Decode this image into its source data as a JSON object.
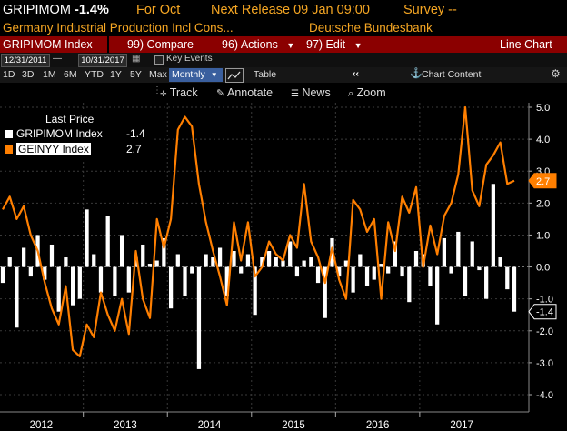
{
  "header": {
    "ticker": "GRIPIMOM",
    "last_value": "-1.4%",
    "period": "For Oct",
    "next_release": "Next Release 09 Jan 09:00",
    "survey": "Survey --"
  },
  "subheader": {
    "description": "Germany Industrial Production Incl Cons...",
    "source": "Deutsche Bundesbank"
  },
  "toolbar": {
    "security": "GRIPIMOM Index",
    "compare": "99) Compare",
    "actions": "96) Actions",
    "edit": "97) Edit",
    "view": "Line Chart"
  },
  "date_row": {
    "start_date": "12/31/2011",
    "end_date": "10/31/2017",
    "key_events": "Key Events"
  },
  "range_row": {
    "ranges": [
      "1D",
      "3D",
      "1M",
      "6M",
      "YTD",
      "1Y",
      "5Y",
      "Max"
    ],
    "selected": "Monthly",
    "table_label": "Table",
    "chart_content": "Chart Content"
  },
  "tools": {
    "track": "Track",
    "annotate": "Annotate",
    "news": "News",
    "zoom": "Zoom"
  },
  "legend": {
    "title": "Last Price",
    "items": [
      {
        "name": "GRIPIMOM Index",
        "value": "-1.4",
        "color": "#ffffff"
      },
      {
        "name": "GEINYY Index",
        "value": "2.7",
        "color": "#ff7f00"
      }
    ]
  },
  "chart_data": {
    "type": "bar+line",
    "x_labels": [
      "2012",
      "2013",
      "2014",
      "2015",
      "2016",
      "2017"
    ],
    "y_ticks": [
      "5.0",
      "4.0",
      "3.0",
      "2.0",
      "1.0",
      "0.0",
      "-1.0",
      "-2.0",
      "-3.0",
      "-4.0"
    ],
    "ylim": [
      -4.0,
      5.0
    ],
    "series": [
      {
        "name": "GRIPIMOM Index",
        "type": "bar",
        "color": "#ffffff",
        "values": [
          -0.5,
          0.3,
          -1.9,
          0.6,
          -0.3,
          1.0,
          -0.4,
          0.7,
          -1.4,
          0.3,
          -1.2,
          -1.0,
          1.8,
          0.4,
          -0.8,
          1.6,
          -0.9,
          1.0,
          -0.8,
          0.3,
          0.7,
          0.1,
          0.2,
          0.9,
          -1.3,
          0.4,
          -0.9,
          -0.2,
          -3.2,
          0.4,
          0.3,
          0.6,
          -0.9,
          0.5,
          -0.2,
          0.4,
          -1.5,
          0.3,
          0.5,
          0.3,
          0.2,
          0.8,
          -0.3,
          0.2,
          0.3,
          -0.5,
          -1.6,
          0.9,
          -0.3,
          0.2,
          -0.8,
          0.4,
          -0.6,
          -0.4,
          0.1,
          -0.2,
          0.8,
          -0.3,
          -1.1,
          0.5,
          0.4,
          -0.6,
          -1.8,
          0.9,
          -0.2,
          1.1,
          -0.9,
          0.8,
          -0.1,
          -1.0,
          2.6,
          0.3,
          -0.7,
          -1.4
        ]
      },
      {
        "name": "GEINYY Index",
        "type": "line",
        "color": "#ff7f00",
        "values": [
          1.8,
          2.2,
          1.5,
          1.9,
          1.0,
          0.5,
          -0.5,
          -1.3,
          -1.8,
          -0.6,
          -2.6,
          -2.8,
          -1.8,
          -2.2,
          -0.8,
          -1.5,
          -2.0,
          -1.0,
          -2.1,
          0.5,
          -1.0,
          -1.6,
          1.5,
          0.6,
          1.5,
          4.3,
          4.7,
          4.4,
          2.6,
          1.4,
          0.5,
          -0.3,
          -1.2,
          1.4,
          0.2,
          1.4,
          -0.3,
          0.0,
          0.8,
          0.4,
          0.2,
          1.0,
          0.6,
          2.6,
          0.8,
          0.3,
          -0.5,
          0.6,
          -0.4,
          -1.0,
          2.1,
          1.8,
          1.1,
          1.5,
          -1.0,
          1.4,
          0.5,
          2.2,
          1.7,
          2.5,
          0.0,
          1.3,
          0.4,
          1.6,
          2.0,
          2.9,
          5.0,
          2.4,
          1.9,
          3.2,
          3.5,
          3.9,
          2.6,
          2.7
        ]
      }
    ],
    "markers": [
      {
        "series": "GEINYY Index",
        "value": "2.7",
        "color": "#ff7f00"
      },
      {
        "series": "GRIPIMOM Index",
        "value": "-1.4",
        "color": "#ffffff"
      }
    ]
  }
}
